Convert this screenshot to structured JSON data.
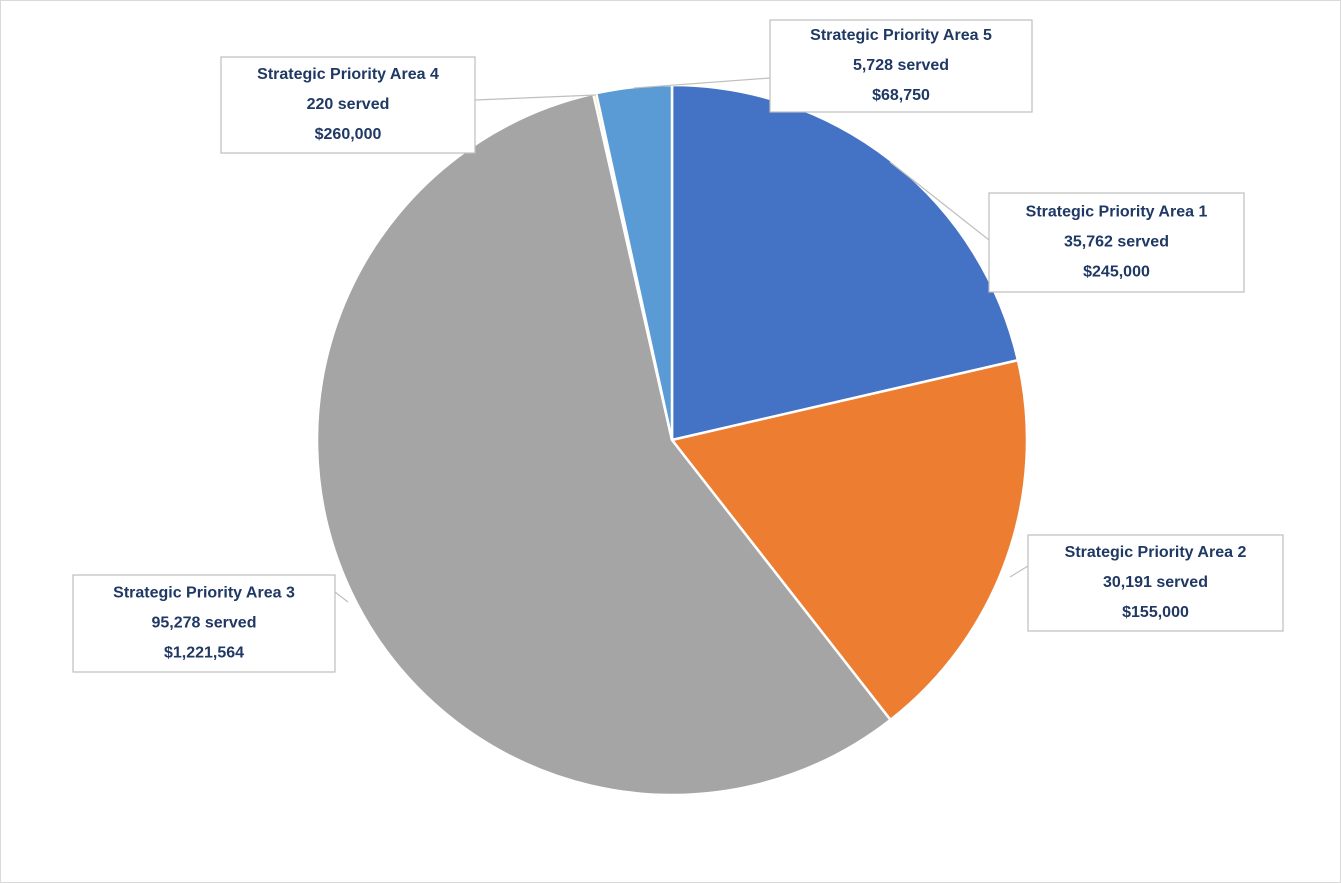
{
  "chart_data": {
    "type": "pie",
    "categories": [
      "Strategic Priority Area 1",
      "Strategic Priority Area 2",
      "Strategic Priority Area 3",
      "Strategic Priority Area 4",
      "Strategic Priority Area 5"
    ],
    "values": [
      35762,
      30191,
      95278,
      220,
      5728
    ],
    "value_labels": [
      "35,762 served",
      "30,191 served",
      "95,278 served",
      "220 served",
      "5,728 served"
    ],
    "funding": [
      "$245,000",
      "$155,000",
      "$1,221,564",
      "$260,000",
      "$68,750"
    ],
    "colors": [
      "#4472c4",
      "#ed7d31",
      "#a5a5a5",
      "#ffc000",
      "#5b9bd5"
    ]
  }
}
